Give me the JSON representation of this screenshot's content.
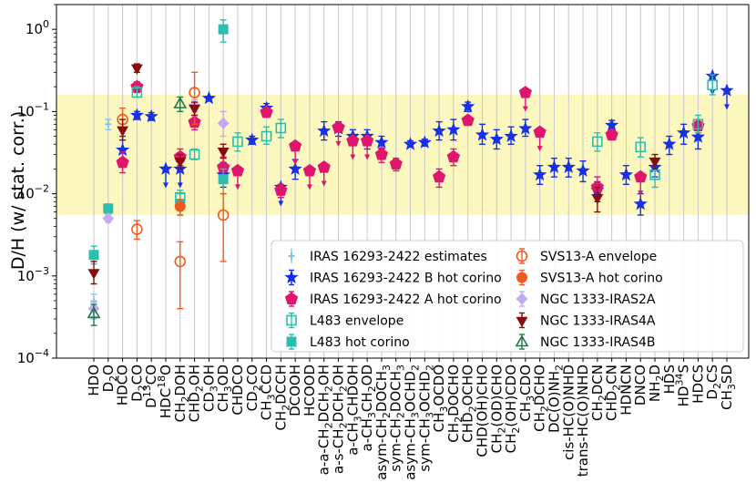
{
  "chart_data": {
    "type": "scatter",
    "title": "",
    "xlabel": "",
    "ylabel": "D/H (w/ stat. corr.)",
    "yscale": "log",
    "ylim": [
      0.0001,
      2
    ],
    "yticks": [
      {
        "value": 1,
        "base": "10",
        "exp": "0"
      },
      {
        "value": 0.1,
        "base": "10",
        "exp": "−1"
      },
      {
        "value": 0.01,
        "base": "10",
        "exp": "−2"
      },
      {
        "value": 0.001,
        "base": "10",
        "exp": "−3"
      },
      {
        "value": 0.0001,
        "base": "10",
        "exp": "−4"
      }
    ],
    "band": {
      "low": 0.0055,
      "high": 0.16,
      "color": "#fdf8c0"
    },
    "categories": [
      {
        "key": "HDO",
        "label": "HDO"
      },
      {
        "key": "D2O",
        "label": "D",
        "sub": "2",
        "tail": "O"
      },
      {
        "key": "HDCO",
        "label": "HDCO"
      },
      {
        "key": "D2CO",
        "label": "D",
        "sub": "2",
        "tail": "CO"
      },
      {
        "key": "D13CO",
        "label": "D",
        "sup": "13",
        "tail": "CO"
      },
      {
        "key": "HDC18O",
        "label": "HDC",
        "sup": "18",
        "tail": "O"
      },
      {
        "key": "CH2DOH",
        "label": "CH",
        "sub": "2",
        "tail": "DOH"
      },
      {
        "key": "CHD2OH",
        "label": "CHD",
        "sub": "2",
        "tail": "OH"
      },
      {
        "key": "CD3OH",
        "label": "CD",
        "sub": "3",
        "tail": "OH"
      },
      {
        "key": "CH3OD",
        "label": "CH",
        "sub": "3",
        "tail": "OD"
      },
      {
        "key": "CHDCO",
        "label": "CHDCO"
      },
      {
        "key": "CD2CO",
        "label": "CD",
        "sub": "2",
        "tail": "CO"
      },
      {
        "key": "CH3CCD",
        "label": "CH",
        "sub": "3",
        "tail": "CCD"
      },
      {
        "key": "CH2DCCH",
        "label": "CH",
        "sub": "2",
        "tail": "DCCH"
      },
      {
        "key": "DCOOH",
        "label": "DCOOH"
      },
      {
        "key": "HCOOD",
        "label": "HCOOD"
      },
      {
        "key": "aaCH2DCH2OH",
        "label": "a-a-CH",
        "sub": "2",
        "tail": "DCH",
        "sub2": "2",
        "tail2": "OH"
      },
      {
        "key": "asCH2DCH2OH",
        "label": "a-s-CH",
        "sub": "2",
        "tail": "DCH",
        "sub2": "2",
        "tail2": "OH"
      },
      {
        "key": "aCH3CHDOH",
        "label": "a-CH",
        "sub": "3",
        "tail": "CHDOH"
      },
      {
        "key": "aCH3CH2OD",
        "label": "a-CH",
        "sub": "3",
        "tail": "CH",
        "sub2": "2",
        "tail2": "OD"
      },
      {
        "key": "asymCH2DOCH3",
        "label": "asym-CH",
        "sub": "2",
        "tail": "DOCH",
        "sub2": "3",
        "tail2": ""
      },
      {
        "key": "symCH2DOCH3",
        "label": "sym-CH",
        "sub": "2",
        "tail": "DOCH",
        "sub2": "3",
        "tail2": ""
      },
      {
        "key": "asymCH3OCHD2",
        "label": "asym-CH",
        "sub": "3",
        "tail": "OCHD",
        "sub2": "2",
        "tail2": ""
      },
      {
        "key": "symCH3OCHD2",
        "label": "sym-CH",
        "sub": "3",
        "tail": "OCHD",
        "sub2": "2",
        "tail2": ""
      },
      {
        "key": "CH3OCDO",
        "label": "CH",
        "sub": "3",
        "tail": "OCDO"
      },
      {
        "key": "CH2DOCHO",
        "label": "CH",
        "sub": "2",
        "tail": "DOCHO"
      },
      {
        "key": "CHD2OCHO",
        "label": "CHD",
        "sub": "2",
        "tail": "OCHO"
      },
      {
        "key": "CHDOHCHO",
        "label": "CHD(OH)CHO"
      },
      {
        "key": "CH2ODCHO",
        "label": "CH",
        "sub": "2",
        "tail": "(OD)CHO"
      },
      {
        "key": "CH2OHCDO",
        "label": "CH",
        "sub": "2",
        "tail": "(OH)CDO"
      },
      {
        "key": "CH3CDO",
        "label": "CH",
        "sub": "3",
        "tail": "CDO"
      },
      {
        "key": "CH2DCHO",
        "label": "CH",
        "sub": "2",
        "tail": "DCHO"
      },
      {
        "key": "DCONH2",
        "label": "DC(O)NH",
        "sub": "2",
        "tail": ""
      },
      {
        "key": "cisHCONHD",
        "label": "cis-HC(O)NHD"
      },
      {
        "key": "transHCONHD",
        "label": "trans-HC(O)NHD"
      },
      {
        "key": "CH2DCN",
        "label": "CH",
        "sub": "2",
        "tail": "DCN"
      },
      {
        "key": "CHD2CN",
        "label": "CHD",
        "sub": "2",
        "tail": "CN"
      },
      {
        "key": "HDNCN",
        "label": "HDNCN"
      },
      {
        "key": "DNCO",
        "label": "DNCO"
      },
      {
        "key": "NH2D",
        "label": "NH",
        "sub": "2",
        "tail": "D"
      },
      {
        "key": "HDS",
        "label": "HDS"
      },
      {
        "key": "HD34S",
        "label": "HD",
        "sup": "34",
        "tail": "S"
      },
      {
        "key": "HDCS",
        "label": "HDCS"
      },
      {
        "key": "D2CS",
        "label": "D",
        "sub": "2",
        "tail": "CS"
      },
      {
        "key": "CH3SD",
        "label": "CH",
        "sub": "3",
        "tail": "SD"
      }
    ],
    "series": [
      {
        "name": "IRAS 16293-2422 estimates",
        "marker": "ytick",
        "color": "#87c4ee",
        "points": [
          {
            "cat": "HDO",
            "y": 0.00048,
            "lo": 0.00032,
            "hi": 0.0006
          },
          {
            "cat": "D2O",
            "y": 0.07,
            "lo": 0.06,
            "hi": 0.08
          }
        ]
      },
      {
        "name": "IRAS 16293-2422 B hot corino",
        "marker": "star",
        "color": "#1530e6",
        "points": [
          {
            "cat": "HDCO",
            "y": 0.034,
            "lo": 0.024,
            "hi": 0.05
          },
          {
            "cat": "D2CO",
            "y": 0.09,
            "lo": 0.08,
            "hi": 0.1
          },
          {
            "cat": "D13CO",
            "y": 0.087,
            "lo": 0.078,
            "hi": 0.097
          },
          {
            "cat": "HDC18O",
            "y": 0.02,
            "upper": true
          },
          {
            "cat": "CH2DOH",
            "y": 0.02,
            "upper": true
          },
          {
            "cat": "CD3OH",
            "y": 0.145
          },
          {
            "cat": "CH3OD",
            "y": 0.017,
            "lo": 0.012,
            "hi": 0.024
          },
          {
            "cat": "CD2CO",
            "y": 0.045,
            "lo": 0.04,
            "hi": 0.05
          },
          {
            "cat": "CH3CCD",
            "y": 0.11,
            "lo": 0.095,
            "hi": 0.125
          },
          {
            "cat": "CH2DCCH",
            "y": 0.012,
            "upper": true
          },
          {
            "cat": "DCOOH",
            "y": 0.02,
            "lo": 0.015,
            "hi": 0.026
          },
          {
            "cat": "aaCH2DCH2OH",
            "y": 0.058,
            "lo": 0.045,
            "hi": 0.075
          },
          {
            "cat": "asCH2DCH2OH",
            "y": 0.062,
            "lo": 0.05,
            "hi": 0.075
          },
          {
            "cat": "aCH3CHDOH",
            "y": 0.05,
            "lo": 0.04,
            "hi": 0.06
          },
          {
            "cat": "aCH3CH2OD",
            "y": 0.05,
            "lo": 0.035,
            "hi": 0.06
          },
          {
            "cat": "asymCH2DOCH3",
            "y": 0.042,
            "lo": 0.035,
            "hi": 0.05
          },
          {
            "cat": "asymCH3OCHD2",
            "y": 0.04,
            "lo": 0.037,
            "hi": 0.044
          },
          {
            "cat": "symCH3OCHD2",
            "y": 0.042,
            "lo": 0.038,
            "hi": 0.046
          },
          {
            "cat": "CH3OCDO",
            "y": 0.058,
            "lo": 0.045,
            "hi": 0.075
          },
          {
            "cat": "CH2DOCHO",
            "y": 0.06,
            "lo": 0.045,
            "hi": 0.08
          },
          {
            "cat": "CHD2OCHO",
            "y": 0.115,
            "lo": 0.1,
            "hi": 0.13
          },
          {
            "cat": "CHDOHCHO",
            "y": 0.052,
            "lo": 0.04,
            "hi": 0.07
          },
          {
            "cat": "CH2ODCHO",
            "y": 0.046,
            "lo": 0.035,
            "hi": 0.06
          },
          {
            "cat": "CH2OHCDO",
            "y": 0.05,
            "lo": 0.04,
            "hi": 0.065
          },
          {
            "cat": "CH3CDO",
            "y": 0.062,
            "lo": 0.05,
            "hi": 0.08
          },
          {
            "cat": "CH2DCHO",
            "y": 0.017,
            "lo": 0.013,
            "hi": 0.022
          },
          {
            "cat": "DCONH2",
            "y": 0.021,
            "lo": 0.016,
            "hi": 0.027
          },
          {
            "cat": "cisHCONHD",
            "y": 0.021,
            "lo": 0.016,
            "hi": 0.027
          },
          {
            "cat": "transHCONHD",
            "y": 0.019,
            "lo": 0.014,
            "hi": 0.025
          },
          {
            "cat": "CH2DCN",
            "y": 0.011,
            "lo": 0.008,
            "hi": 0.014
          },
          {
            "cat": "CHD2CN",
            "y": 0.068,
            "lo": 0.06,
            "hi": 0.078
          },
          {
            "cat": "HDNCN",
            "y": 0.017,
            "lo": 0.013,
            "hi": 0.022
          },
          {
            "cat": "DNCO",
            "y": 0.0075,
            "lo": 0.0055,
            "hi": 0.01
          },
          {
            "cat": "NH2D",
            "y": 0.021,
            "lo": 0.016,
            "hi": 0.027
          },
          {
            "cat": "HDS",
            "y": 0.04,
            "lo": 0.03,
            "hi": 0.05
          },
          {
            "cat": "HD34S",
            "y": 0.055,
            "lo": 0.04,
            "hi": 0.07
          },
          {
            "cat": "HDCS",
            "y": 0.049,
            "lo": 0.035,
            "hi": 0.068
          },
          {
            "cat": "D2CS",
            "y": 0.27,
            "upper": true
          },
          {
            "cat": "CH3SD",
            "y": 0.18,
            "upper": true
          }
        ]
      },
      {
        "name": "IRAS 16293-2422 A hot corino",
        "marker": "pentagon",
        "color": "#e0166e",
        "points": [
          {
            "cat": "HDCO",
            "y": 0.024,
            "lo": 0.018,
            "hi": 0.032
          },
          {
            "cat": "D2CO",
            "y": 0.2,
            "lo": 0.17,
            "hi": 0.23
          },
          {
            "cat": "CH2DOH",
            "y": 0.028,
            "lo": 0.022,
            "hi": 0.035
          },
          {
            "cat": "CHD2OH",
            "y": 0.074,
            "lo": 0.06,
            "hi": 0.09
          },
          {
            "cat": "CH3OD",
            "y": 0.021,
            "lo": 0.016,
            "hi": 0.028
          },
          {
            "cat": "CHDCO",
            "y": 0.019,
            "upper": true
          },
          {
            "cat": "CH3CCD",
            "y": 0.098,
            "lo": 0.085,
            "hi": 0.11
          },
          {
            "cat": "CH2DCCH",
            "y": 0.011,
            "lo": 0.009,
            "hi": 0.013
          },
          {
            "cat": "DCOOH",
            "y": 0.038,
            "upper": true
          },
          {
            "cat": "HCOOD",
            "y": 0.019,
            "upper": true
          },
          {
            "cat": "aaCH2DCH2OH",
            "y": 0.021,
            "upper": true
          },
          {
            "cat": "asCH2DCH2OH",
            "y": 0.064,
            "upper": true
          },
          {
            "cat": "aCH3CHDOH",
            "y": 0.044,
            "upper": true
          },
          {
            "cat": "aCH3CH2OD",
            "y": 0.044,
            "upper": true
          },
          {
            "cat": "asymCH2DOCH3",
            "y": 0.03,
            "lo": 0.024,
            "hi": 0.036
          },
          {
            "cat": "symCH2DOCH3",
            "y": 0.023,
            "lo": 0.019,
            "hi": 0.027
          },
          {
            "cat": "CH3OCDO",
            "y": 0.016,
            "lo": 0.012,
            "hi": 0.02
          },
          {
            "cat": "CH2DOCHO",
            "y": 0.028,
            "lo": 0.022,
            "hi": 0.035
          },
          {
            "cat": "CHD2OCHO",
            "y": 0.078,
            "lo": 0.068,
            "hi": 0.088
          },
          {
            "cat": "CH3CDO",
            "y": 0.17,
            "upper": true
          },
          {
            "cat": "CH2DCHO",
            "y": 0.056,
            "upper": true
          },
          {
            "cat": "CH2DCN",
            "y": 0.012,
            "lo": 0.009,
            "hi": 0.016
          },
          {
            "cat": "CHD2CN",
            "y": 0.052,
            "lo": 0.045,
            "hi": 0.06
          },
          {
            "cat": "DNCO",
            "y": 0.016,
            "upper": true
          },
          {
            "cat": "HDCS",
            "y": 0.067,
            "lo": 0.055,
            "hi": 0.08
          }
        ]
      },
      {
        "name": "L483 envelope",
        "marker": "open-square",
        "color": "#2cbfb0",
        "points": [
          {
            "cat": "D2CO",
            "y": 0.17,
            "lo": 0.15,
            "hi": 0.2
          },
          {
            "cat": "CH2DOH",
            "y": 0.009,
            "lo": 0.007,
            "hi": 0.011
          },
          {
            "cat": "CHD2OH",
            "y": 0.03,
            "lo": 0.026,
            "hi": 0.035
          },
          {
            "cat": "CHDCO",
            "y": 0.043,
            "lo": 0.033,
            "hi": 0.055
          },
          {
            "cat": "CH3CCD",
            "y": 0.05,
            "lo": 0.04,
            "hi": 0.065
          },
          {
            "cat": "CH2DCCH",
            "y": 0.063,
            "lo": 0.048,
            "hi": 0.08
          },
          {
            "cat": "CH2DCN",
            "y": 0.043,
            "lo": 0.033,
            "hi": 0.055
          },
          {
            "cat": "DNCO",
            "y": 0.037,
            "lo": 0.028,
            "hi": 0.048
          },
          {
            "cat": "NH2D",
            "y": 0.017,
            "lo": 0.012,
            "hi": 0.024
          },
          {
            "cat": "HDCS",
            "y": 0.07,
            "lo": 0.055,
            "hi": 0.09
          },
          {
            "cat": "D2CS",
            "y": 0.21,
            "lo": 0.16,
            "hi": 0.28
          }
        ]
      },
      {
        "name": "L483 hot corino",
        "marker": "square",
        "color": "#2cbfb0",
        "points": [
          {
            "cat": "HDO",
            "y": 0.0018,
            "lo": 0.0014,
            "hi": 0.0023
          },
          {
            "cat": "D2O",
            "y": 0.0066,
            "lo": 0.0058,
            "hi": 0.0075
          },
          {
            "cat": "CH2DOH",
            "y": 0.0075,
            "lo": 0.0055,
            "hi": 0.01
          },
          {
            "cat": "CH3OD",
            "y": 1.0,
            "lo": 0.7,
            "hi": 1.3
          },
          {
            "cat": "CH3OD",
            "y": 0.015,
            "lo": 0.01,
            "hi": 0.02
          }
        ]
      },
      {
        "name": "SVS13-A envelope",
        "marker": "open-circle",
        "color": "#f05a1e",
        "points": [
          {
            "cat": "HDCO",
            "y": 0.08,
            "lo": 0.06,
            "hi": 0.11
          },
          {
            "cat": "D2CO",
            "y": 0.0037,
            "lo": 0.0028,
            "hi": 0.0047
          },
          {
            "cat": "CH2DOH",
            "y": 0.0015,
            "lo": 0.0004,
            "hi": 0.0026
          },
          {
            "cat": "CHD2OH",
            "y": 0.17,
            "lo": 0.07,
            "hi": 0.3
          },
          {
            "cat": "CH3OD",
            "y": 0.0055,
            "lo": 0.0015,
            "hi": 0.01
          }
        ]
      },
      {
        "name": "SVS13-A hot corino",
        "marker": "circle",
        "color": "#f05a1e",
        "points": [
          {
            "cat": "CH2DOH",
            "y": 0.007,
            "lo": 0.0055,
            "hi": 0.0085
          }
        ]
      },
      {
        "name": "NGC 1333-IRAS2A",
        "marker": "diamond",
        "color": "#c6a8f5",
        "points": [
          {
            "cat": "HDO",
            "y": 0.0004,
            "lo": 0.0003,
            "hi": 0.0005
          },
          {
            "cat": "D2O",
            "y": 0.005,
            "lo": 0.0045,
            "hi": 0.0056
          },
          {
            "cat": "CHD2OH",
            "y": 0.12,
            "lo": 0.1,
            "hi": 0.14
          },
          {
            "cat": "CH3OD",
            "y": 0.072,
            "lo": 0.05,
            "hi": 0.1
          }
        ]
      },
      {
        "name": "NGC 1333-IRAS4A",
        "marker": "tri-down",
        "color": "#8b0a0a",
        "points": [
          {
            "cat": "HDO",
            "y": 0.0011,
            "lo": 0.0008,
            "hi": 0.0015
          },
          {
            "cat": "HDCO",
            "y": 0.06,
            "lo": 0.045,
            "hi": 0.08
          },
          {
            "cat": "D2CO",
            "y": 0.34,
            "lo": 0.3,
            "hi": 0.38
          },
          {
            "cat": "CH2DOH",
            "y": 0.025,
            "lo": 0.02,
            "hi": 0.03
          },
          {
            "cat": "CHD2OH",
            "y": 0.11,
            "lo": 0.09,
            "hi": 0.13
          },
          {
            "cat": "CH3OD",
            "y": 0.033,
            "lo": 0.027,
            "hi": 0.04
          },
          {
            "cat": "CH2DCN",
            "y": 0.009,
            "lo": 0.006,
            "hi": 0.012
          },
          {
            "cat": "NH2D",
            "y": 0.025,
            "lo": 0.02,
            "hi": 0.03
          }
        ]
      },
      {
        "name": "NGC 1333-IRAS4B",
        "marker": "tri-up",
        "color": "#1f7a4a",
        "points": [
          {
            "cat": "HDO",
            "y": 0.00035,
            "lo": 0.00025,
            "hi": 0.00045
          },
          {
            "cat": "CH2DOH",
            "y": 0.125,
            "lo": 0.1,
            "hi": 0.15
          }
        ]
      }
    ],
    "legend_position": "lower-right"
  }
}
